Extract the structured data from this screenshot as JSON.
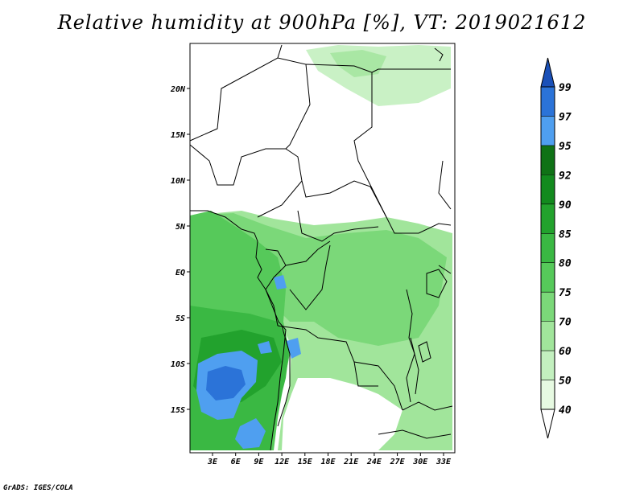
{
  "title": "Relative humidity at 900hPa [%], VT: 2019021612",
  "credit": "GrADS: IGES/COLA",
  "map": {
    "lat_labels": [
      "20N",
      "15N",
      "10N",
      "5N",
      "EQ",
      "5S",
      "10S",
      "15S"
    ],
    "lon_labels": [
      "3E",
      "6E",
      "9E",
      "12E",
      "15E",
      "18E",
      "21E",
      "24E",
      "27E",
      "30E",
      "33E"
    ],
    "lat_range": [
      -20,
      25
    ],
    "lon_range": [
      0,
      35
    ]
  },
  "colorbar": {
    "levels": [
      "40",
      "50",
      "60",
      "70",
      "75",
      "80",
      "85",
      "90",
      "92",
      "95",
      "97",
      "99"
    ],
    "colors": [
      "#ffffff",
      "#e7fae2",
      "#c3f0bf",
      "#a1e59b",
      "#7bd879",
      "#56c95a",
      "#3ab843",
      "#22a22d",
      "#128a1e",
      "#0f7216",
      "#4f9ff0",
      "#2b73d8",
      "#1a50b8"
    ]
  },
  "regions": [
    {
      "name": "coastal-west-region",
      "color": "#56c95a"
    },
    {
      "name": "congo-basin-region",
      "color": "#7bd879"
    },
    {
      "name": "angola-high-region",
      "color": "#3ab843"
    },
    {
      "name": "saturated-blue-region",
      "color": "#4f9ff0"
    },
    {
      "name": "north-moist-patch",
      "color": "#c3f0bf"
    },
    {
      "name": "east-moist-region",
      "color": "#a1e59b"
    }
  ]
}
